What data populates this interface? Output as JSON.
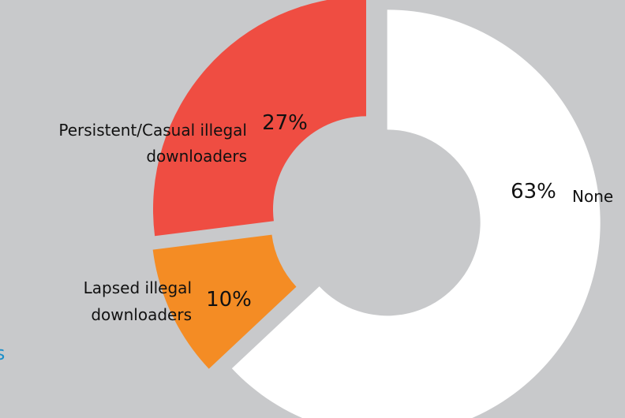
{
  "partial_text": "rs",
  "chart_data": {
    "type": "pie",
    "style": "donut, exploded slices",
    "slices": [
      {
        "label": "None",
        "value": 63,
        "pct_label": "63%",
        "color": "#ffffff"
      },
      {
        "label": "Lapsed illegal downloaders",
        "label_lines": [
          "Lapsed illegal",
          "downloaders"
        ],
        "value": 10,
        "pct_label": "10%",
        "color": "#f48c24"
      },
      {
        "label": "Persistent/Casual illegal downloaders",
        "label_lines": [
          "Persistent/Casual illegal",
          "downloaders"
        ],
        "value": 27,
        "pct_label": "27%",
        "color": "#ef4d42"
      }
    ]
  },
  "colors": {
    "background": "#c8c9cb",
    "partial_text": "#1b8fc9"
  }
}
